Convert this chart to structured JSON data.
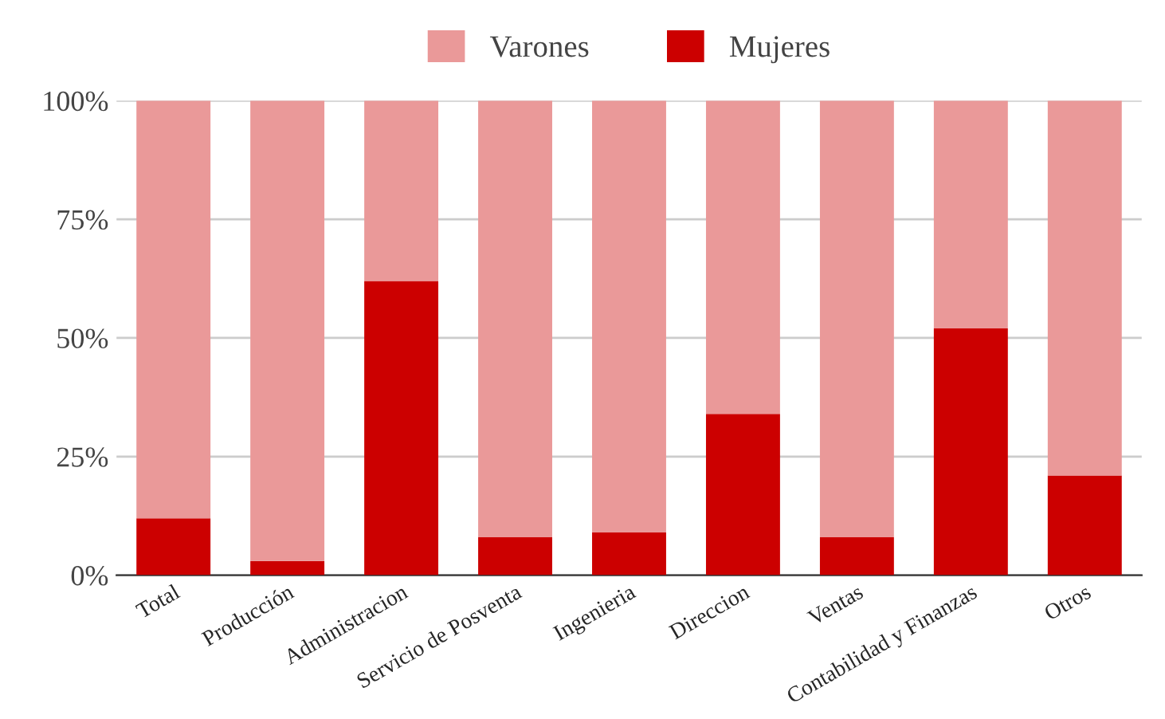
{
  "chart_data": {
    "type": "bar",
    "stacked": true,
    "categories": [
      "Total",
      "Producción",
      "Administracion",
      "Servicio de Posventa",
      "Ingenieria",
      "Direccion",
      "Ventas",
      "Contabilidad y Finanzas",
      "Otros"
    ],
    "series": [
      {
        "name": "Mujeres",
        "color": "#cc0000",
        "values": [
          12,
          3,
          62,
          8,
          9,
          34,
          8,
          52,
          21
        ]
      },
      {
        "name": "Varones",
        "color": "#ea9999",
        "values": [
          88,
          97,
          38,
          92,
          91,
          66,
          92,
          48,
          79
        ]
      }
    ],
    "ylim": [
      0,
      100
    ],
    "yticks": [
      {
        "value": 0,
        "label": "0%"
      },
      {
        "value": 25,
        "label": "25%"
      },
      {
        "value": 50,
        "label": "50%"
      },
      {
        "value": 75,
        "label": "75%"
      },
      {
        "value": 100,
        "label": "100%"
      }
    ],
    "grid": "y",
    "legend": "top"
  }
}
